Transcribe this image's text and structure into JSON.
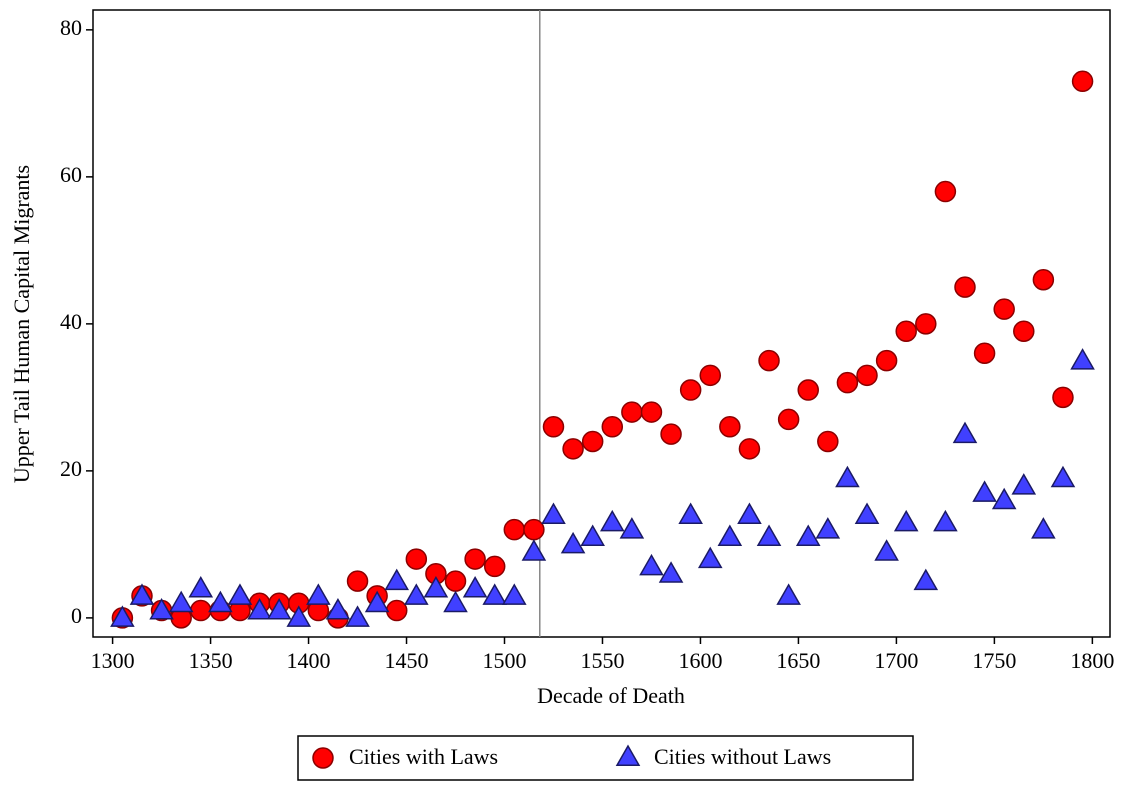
{
  "chart_data": {
    "type": "scatter",
    "x_label": "Decade of Death",
    "y_label": "Upper Tail Human Capital Migrants",
    "x": [
      1305,
      1315,
      1325,
      1335,
      1345,
      1355,
      1365,
      1375,
      1385,
      1395,
      1405,
      1415,
      1425,
      1435,
      1445,
      1455,
      1465,
      1475,
      1485,
      1495,
      1505,
      1515,
      1525,
      1535,
      1545,
      1555,
      1565,
      1575,
      1585,
      1595,
      1605,
      1615,
      1625,
      1635,
      1645,
      1655,
      1665,
      1675,
      1685,
      1695,
      1705,
      1715,
      1725,
      1735,
      1745,
      1755,
      1765,
      1775,
      1785,
      1795
    ],
    "series": [
      {
        "name": "Cities with Laws",
        "color": "#ff0000",
        "marker": "circle",
        "values": [
          0,
          3,
          1,
          0,
          1,
          1,
          1,
          2,
          2,
          2,
          1,
          0,
          5,
          3,
          1,
          8,
          6,
          5,
          8,
          7,
          12,
          12,
          26,
          23,
          24,
          26,
          28,
          28,
          25,
          31,
          33,
          26,
          23,
          35,
          27,
          31,
          24,
          32,
          33,
          35,
          39,
          40,
          58,
          45,
          36,
          42,
          39,
          46,
          30,
          73
        ]
      },
      {
        "name": "Cities without Laws",
        "color": "#4040ff",
        "marker": "triangle",
        "values": [
          0,
          3,
          1,
          2,
          4,
          2,
          3,
          1,
          1,
          0,
          3,
          1,
          0,
          2,
          5,
          3,
          4,
          2,
          4,
          3,
          3,
          9,
          14,
          10,
          11,
          13,
          12,
          7,
          6,
          14,
          8,
          11,
          14,
          11,
          3,
          11,
          12,
          19,
          14,
          9,
          13,
          5,
          13,
          25,
          17,
          16,
          18,
          12,
          19,
          35
        ]
      }
    ],
    "xlim": [
      1290,
      1809
    ],
    "ylim": [
      -2.6,
      82.7
    ],
    "xticks": [
      1300,
      1350,
      1400,
      1450,
      1500,
      1550,
      1600,
      1650,
      1700,
      1750,
      1800
    ],
    "yticks": [
      0,
      20,
      40,
      60,
      80
    ],
    "reference_line_x": 1518,
    "legend": "bottom"
  }
}
